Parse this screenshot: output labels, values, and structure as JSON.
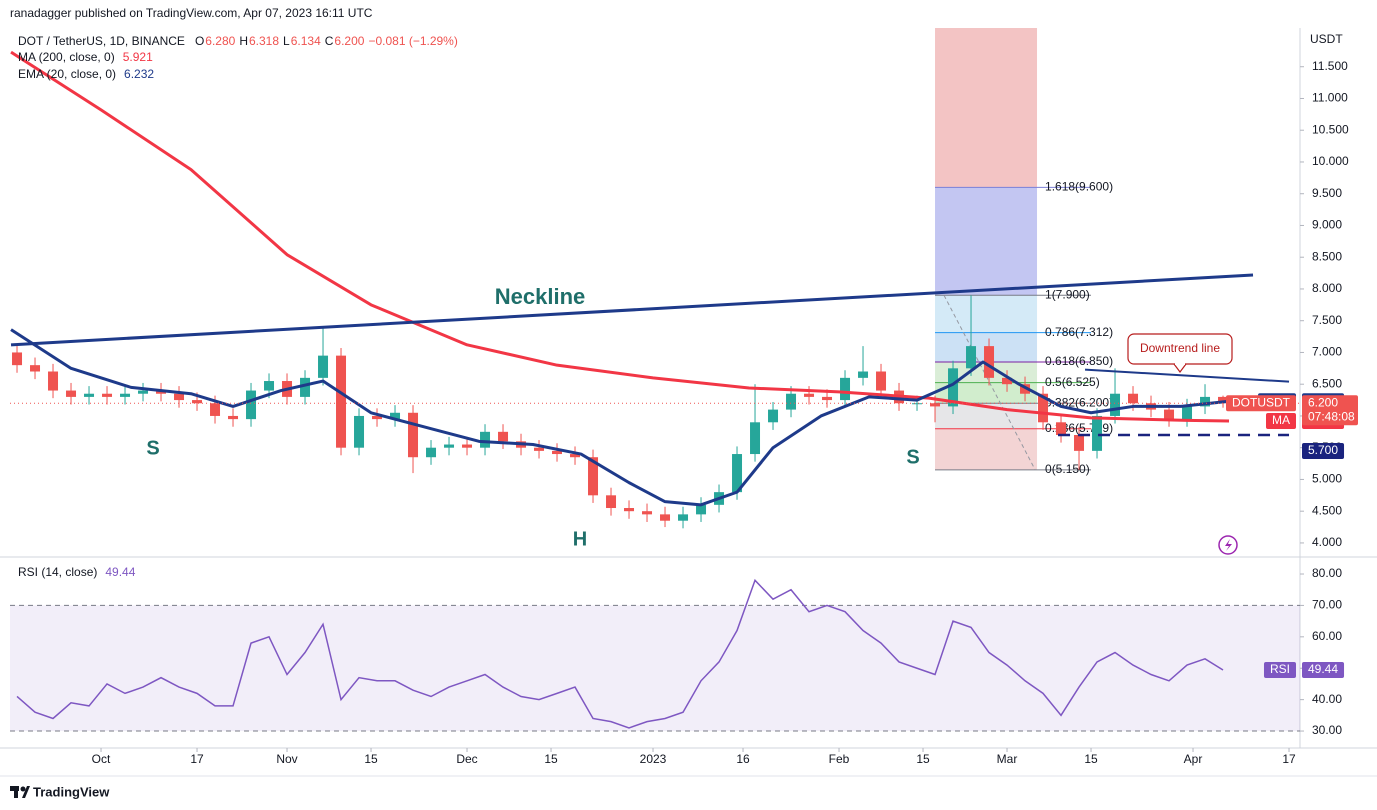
{
  "header": {
    "byline": "ranadagger published on TradingView.com, Apr 07, 2023 16:11 UTC"
  },
  "footer": {
    "brand": "TradingView"
  },
  "chart_data": [
    {
      "type": "candlestick",
      "title": "DOT / TetherUS, 1D, BINANCE",
      "legend_ohlc": [
        {
          "key": "O",
          "label": "6.280"
        },
        {
          "key": "H",
          "label": "6.318"
        },
        {
          "key": "L",
          "label": "6.134"
        },
        {
          "key": "C",
          "label": "6.200"
        }
      ],
      "change": "−0.081 (−1.29%)",
      "up_color": "#26a69a",
      "down_color": "#ef5350",
      "x": [
        -14,
        -11,
        -8,
        -5,
        -2,
        1,
        4,
        7,
        10,
        13,
        16,
        19,
        22,
        25,
        28,
        31,
        34,
        37,
        40,
        43,
        46,
        49,
        52,
        55,
        58,
        61,
        64,
        67,
        70,
        73,
        76,
        79,
        82,
        85,
        88,
        91,
        94,
        97,
        100,
        103,
        106,
        109,
        112,
        115,
        118,
        121,
        124,
        127,
        130,
        133,
        136,
        139,
        142,
        145,
        148,
        151,
        154,
        157,
        160,
        163,
        166,
        169,
        172,
        175,
        178,
        181,
        184,
        187
      ],
      "open": [
        7.0,
        6.8,
        6.7,
        6.4,
        6.3,
        6.35,
        6.3,
        6.35,
        6.4,
        6.35,
        6.25,
        6.2,
        6.0,
        5.95,
        6.4,
        6.55,
        6.3,
        6.6,
        6.95,
        5.5,
        6.0,
        5.95,
        6.05,
        5.35,
        5.5,
        5.55,
        5.5,
        5.75,
        5.6,
        5.5,
        5.45,
        5.4,
        5.35,
        4.75,
        4.55,
        4.5,
        4.45,
        4.35,
        4.45,
        4.6,
        4.8,
        5.4,
        5.9,
        6.1,
        6.35,
        6.3,
        6.25,
        6.6,
        6.7,
        6.4,
        6.2,
        6.2,
        6.15,
        6.75,
        7.1,
        6.6,
        6.5,
        6.35,
        5.9,
        5.7,
        5.45,
        6.0,
        6.35,
        6.2,
        6.1,
        5.95,
        6.15,
        6.3
      ],
      "high": [
        7.12,
        6.92,
        6.82,
        6.52,
        6.47,
        6.47,
        6.47,
        6.52,
        6.52,
        6.47,
        6.37,
        6.32,
        6.12,
        6.52,
        6.67,
        6.67,
        6.72,
        7.4,
        7.07,
        6.12,
        6.12,
        6.17,
        6.17,
        5.62,
        5.67,
        5.67,
        5.87,
        5.87,
        5.72,
        5.62,
        5.57,
        5.52,
        5.47,
        4.87,
        4.67,
        4.62,
        4.57,
        4.57,
        4.72,
        4.92,
        5.52,
        6.5,
        6.22,
        6.47,
        6.47,
        6.42,
        6.72,
        7.1,
        6.82,
        6.52,
        6.32,
        6.32,
        6.87,
        7.9,
        7.22,
        6.72,
        6.62,
        6.47,
        6.02,
        5.82,
        6.12,
        6.75,
        6.47,
        6.32,
        6.22,
        6.27,
        6.5,
        6.32
      ],
      "low": [
        6.68,
        6.58,
        6.28,
        6.18,
        6.18,
        6.18,
        6.18,
        6.23,
        6.23,
        6.13,
        6.08,
        5.88,
        5.83,
        5.83,
        6.28,
        6.18,
        6.18,
        6.48,
        5.38,
        5.38,
        5.83,
        5.83,
        5.1,
        5.23,
        5.38,
        5.38,
        5.38,
        5.48,
        5.38,
        5.33,
        5.28,
        5.23,
        4.63,
        4.43,
        4.38,
        4.33,
        4.25,
        4.23,
        4.33,
        4.48,
        4.68,
        5.28,
        5.78,
        5.98,
        6.18,
        6.13,
        6.13,
        6.48,
        6.28,
        6.08,
        6.08,
        5.9,
        6.03,
        6.63,
        6.48,
        6.38,
        6.23,
        5.78,
        5.58,
        5.15,
        5.33,
        5.88,
        6.08,
        5.98,
        5.83,
        5.83,
        6.03,
        6.13
      ],
      "close": [
        6.8,
        6.7,
        6.4,
        6.3,
        6.35,
        6.3,
        6.35,
        6.4,
        6.35,
        6.25,
        6.2,
        6.0,
        5.95,
        6.4,
        6.55,
        6.3,
        6.6,
        6.95,
        5.5,
        6.0,
        5.95,
        6.05,
        5.35,
        5.5,
        5.55,
        5.5,
        5.75,
        5.6,
        5.5,
        5.45,
        5.4,
        5.35,
        4.75,
        4.55,
        4.5,
        4.45,
        4.35,
        4.45,
        4.6,
        4.8,
        5.4,
        5.9,
        6.1,
        6.35,
        6.3,
        6.25,
        6.6,
        6.7,
        6.4,
        6.2,
        6.2,
        6.15,
        6.75,
        7.1,
        6.6,
        6.5,
        6.35,
        5.9,
        5.7,
        5.45,
        6.0,
        6.35,
        6.2,
        6.1,
        5.95,
        6.15,
        6.3,
        6.2
      ],
      "series": [
        {
          "name": "MA (200, close, 0)",
          "tag": "MA",
          "legend_value": 5.921,
          "color": "#f23645",
          "x": [
            -15,
            0,
            15,
            31,
            45,
            61,
            76,
            92,
            108,
            123,
            138,
            151,
            165,
            181,
            188
          ],
          "values": [
            11.73,
            10.82,
            9.88,
            8.54,
            7.75,
            7.12,
            6.8,
            6.6,
            6.44,
            6.38,
            6.28,
            6.1,
            5.97,
            5.93,
            5.921
          ]
        },
        {
          "name": "EMA (20, close, 0)",
          "tag": "EMA",
          "legend_value": 6.232,
          "color": "#1e3a8a",
          "x": [
            -15,
            -5,
            5,
            15,
            22,
            30,
            37,
            45,
            55,
            63,
            72,
            80,
            88,
            94,
            100,
            106,
            112,
            120,
            128,
            136,
            142,
            147,
            153,
            160,
            165,
            172,
            180,
            188
          ],
          "values": [
            7.36,
            6.75,
            6.45,
            6.35,
            6.15,
            6.4,
            6.55,
            6.05,
            5.8,
            5.6,
            5.55,
            5.4,
            4.95,
            4.65,
            4.6,
            4.8,
            5.5,
            6.0,
            6.3,
            6.25,
            6.5,
            6.85,
            6.5,
            6.15,
            6.05,
            6.15,
            6.15,
            6.232
          ]
        }
      ],
      "xlim": [
        -15.17,
        199.83
      ],
      "ylim": [
        3.81,
        12.11
      ],
      "y_axis_title": "USDT",
      "yticks": [
        {
          "value": 4,
          "label": "4.000"
        },
        {
          "value": 4.5,
          "label": "4.500"
        },
        {
          "value": 5,
          "label": "5.000"
        },
        {
          "value": 5.5,
          "label": "5.500"
        },
        {
          "value": 6,
          "label": "6.000"
        },
        {
          "value": 6.5,
          "label": "6.500"
        },
        {
          "value": 7,
          "label": "7.000"
        },
        {
          "value": 7.5,
          "label": "7.500"
        },
        {
          "value": 8,
          "label": "8.000"
        },
        {
          "value": 8.5,
          "label": "8.500"
        },
        {
          "value": 9,
          "label": "9.000"
        },
        {
          "value": 9.5,
          "label": "9.500"
        },
        {
          "value": 10,
          "label": "10.000"
        },
        {
          "value": 10.5,
          "label": "10.500"
        },
        {
          "value": 11,
          "label": "11.000"
        },
        {
          "value": 11.5,
          "label": "11.500"
        }
      ],
      "last_price": {
        "value": 6.2,
        "label": "6.200"
      },
      "countdown": "07:48:08",
      "symbol": "DOTUSDT",
      "price_color": "#ef5350",
      "support": {
        "value": 5.7,
        "label": "5.700",
        "x": [
          159.5,
          198
        ],
        "color": "#1a237e"
      },
      "neckline": {
        "label": "Neckline",
        "x": [
          -15,
          192
        ],
        "values": [
          7.12,
          8.22
        ],
        "color": "#1e3a8a"
      },
      "downtrend": {
        "label": "Downtrend line",
        "x": [
          164,
          198
        ],
        "values": [
          6.73,
          6.54
        ],
        "color": "#1e3a8a"
      },
      "pattern_labels": [
        "S",
        "H",
        "S"
      ],
      "fib": {
        "x": [
          139,
          156
        ],
        "line_x": [
          139,
          165
        ],
        "above_color": "#f3c4c4",
        "trend": {
          "x": [
            140.5,
            155.7
          ],
          "values": [
            7.9,
            5.15
          ]
        },
        "levels": [
          {
            "value": 9.6,
            "label": "1.618(9.600)",
            "color": "#7b7fd6",
            "band": "#b8bcf0"
          },
          {
            "value": 7.9,
            "label": "1(7.900)",
            "color": "#787b86",
            "band": "#cde6f6"
          },
          {
            "value": 7.312,
            "label": "0.786(7.312)",
            "color": "#2196f3",
            "band": "#c3dcf3"
          },
          {
            "value": 6.85,
            "label": "0.618(6.850)",
            "color": "#7b1fa2",
            "band": "#d3ead0"
          },
          {
            "value": 6.525,
            "label": "0.5(6.525)",
            "color": "#4caf50",
            "band": "#c9eac4"
          },
          {
            "value": 6.2,
            "label": "0.382(6.200)",
            "color": "#787b86",
            "band": "#e2e2e4"
          },
          {
            "value": 5.799,
            "label": "0.236(5.799)",
            "color": "#f23645",
            "band": "#f1cccc"
          },
          {
            "value": 5.15,
            "label": "0(5.150)",
            "color": "#787b86"
          }
        ]
      }
    },
    {
      "type": "line",
      "title": "RSI (14, close)",
      "tag": "RSI",
      "color": "#7e57c2",
      "x": [
        -14,
        -11,
        -8,
        -5,
        -2,
        1,
        4,
        7,
        10,
        13,
        16,
        19,
        22,
        25,
        28,
        31,
        34,
        37,
        40,
        43,
        46,
        49,
        52,
        55,
        58,
        61,
        64,
        67,
        70,
        73,
        76,
        79,
        82,
        85,
        88,
        91,
        94,
        97,
        100,
        103,
        106,
        109,
        112,
        115,
        118,
        121,
        124,
        127,
        130,
        133,
        136,
        139,
        142,
        145,
        148,
        151,
        154,
        157,
        160,
        163,
        166,
        169,
        172,
        175,
        178,
        181,
        184,
        187
      ],
      "values": [
        41,
        36,
        34,
        39,
        38,
        45,
        42,
        44,
        47,
        44,
        42,
        38,
        38,
        58,
        60,
        48,
        55,
        64,
        40,
        47,
        46,
        46,
        43,
        41,
        44,
        46,
        48,
        44,
        41,
        40,
        42,
        44,
        34,
        33,
        31,
        33,
        34,
        36,
        46,
        52,
        62,
        78,
        72,
        75,
        68,
        70,
        68,
        62,
        58,
        52,
        50,
        48,
        65,
        63,
        55,
        51,
        46,
        42,
        35,
        44,
        52,
        55,
        51,
        48,
        46,
        51,
        53,
        49.44
      ],
      "band": [
        30,
        70
      ],
      "xlim": [
        -15.17,
        199.83
      ],
      "ylim": [
        24.6,
        85.1
      ],
      "yticks": [
        {
          "value": 30,
          "label": "30.00"
        },
        {
          "value": 40,
          "label": "40.00"
        },
        {
          "value": 50,
          "label": "50.00"
        },
        {
          "value": 60,
          "label": "60.00"
        },
        {
          "value": 70,
          "label": "70.00"
        },
        {
          "value": 80,
          "label": "80.00"
        }
      ],
      "xticks": [
        {
          "value": 0,
          "label": "Oct"
        },
        {
          "value": 16,
          "label": "17"
        },
        {
          "value": 31,
          "label": "Nov"
        },
        {
          "value": 45,
          "label": "15"
        },
        {
          "value": 61,
          "label": "Dec"
        },
        {
          "value": 75,
          "label": "15"
        },
        {
          "value": 92,
          "label": "2023"
        },
        {
          "value": 107,
          "label": "16"
        },
        {
          "value": 123,
          "label": "Feb"
        },
        {
          "value": 137,
          "label": "15"
        },
        {
          "value": 151,
          "label": "Mar"
        },
        {
          "value": 165,
          "label": "15"
        },
        {
          "value": 182,
          "label": "Apr"
        },
        {
          "value": 198,
          "label": "17"
        }
      ]
    }
  ]
}
